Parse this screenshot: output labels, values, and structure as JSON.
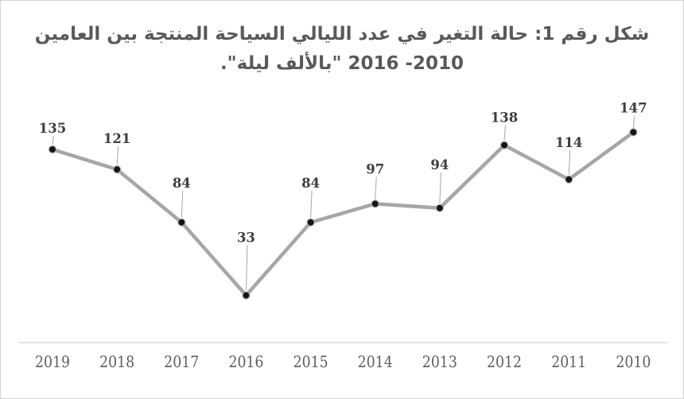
{
  "frame": {
    "background": "#ffffff",
    "border_color": "#d2d2d2"
  },
  "chart_data": {
    "type": "line",
    "title_line1": "شكل رقم 1: حالة التغير في عدد الليالي السياحة المنتجة بين العامين",
    "title_line2": "2010- 2016 \"بالألف ليلة\".",
    "categories": [
      "2019",
      "2018",
      "2017",
      "2016",
      "2015",
      "2014",
      "2013",
      "2012",
      "2011",
      "2010"
    ],
    "values": [
      135,
      121,
      84,
      33,
      84,
      97,
      94,
      138,
      114,
      147
    ],
    "xlabel": "",
    "ylabel": "",
    "ylim": [
      0,
      160
    ],
    "grid": false,
    "legend": false,
    "data_labels_shown": true,
    "label_offsets": [
      21,
      33,
      44,
      67,
      44,
      38,
      49,
      29,
      41,
      25
    ],
    "colors": {
      "line": "#a6a6a6",
      "marker": "#141414",
      "marker_ring": "#a8a8a8",
      "data_label": "#3d3d3d",
      "leader_line": "#a6a6a6",
      "axis_line": "#d9d9d9",
      "category_label": "#5d5d5d",
      "title": "#595959"
    }
  }
}
